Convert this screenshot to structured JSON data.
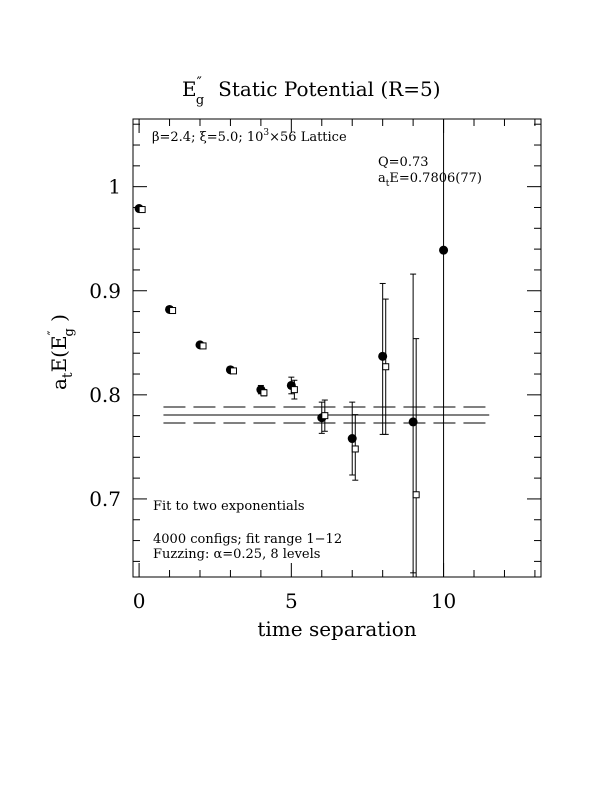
{
  "chart_data": {
    "type": "scatter",
    "title_main": "E",
    "title_sup": "″",
    "title_sub": "g",
    "title_rest": "Static Potential (R=5)",
    "xlabel": "time separation",
    "ylabel_a": "a",
    "ylabel_a_sub": "t",
    "ylabel_mid": "E(E",
    "ylabel_sup": "″",
    "ylabel_sub": "g",
    "ylabel_end": " )",
    "xlim": [
      -0.2,
      13.2
    ],
    "ylim": [
      0.625,
      1.065
    ],
    "x_ticks": [
      0,
      5,
      10
    ],
    "x_tick_labels": [
      "0",
      "5",
      "10"
    ],
    "y_ticks": [
      0.7,
      0.8,
      0.9,
      1.0
    ],
    "y_tick_labels": [
      "0.7",
      "0.8",
      "0.9",
      "1"
    ],
    "annotations": {
      "lattice_pre": "β=2.4; ξ=5.0; 10",
      "lattice_sup": "3",
      "lattice_post": "×56 Lattice",
      "q": "Q=0.73",
      "fit_a": "a",
      "fit_sub": "t",
      "fit_rest": "E=0.7806(77)",
      "method": "Fit to two exponentials",
      "configs": "4000 configs; fit range 1−12",
      "fuzzing": "Fuzzing: α=0.25, 8 levels"
    },
    "series": [
      {
        "marker": "filled-circle",
        "x": [
          0,
          1,
          2,
          3,
          4,
          5,
          6,
          7,
          8,
          9,
          10
        ],
        "y": [
          0.979,
          0.882,
          0.848,
          0.824,
          0.805,
          0.809,
          0.778,
          0.758,
          0.837,
          0.774,
          0.939
        ],
        "yerr_low": [
          0.001,
          0.0015,
          0.002,
          0.002,
          0.004,
          0.008,
          0.015,
          0.035,
          0.075,
          0.145,
          0.32
        ],
        "yerr_high": [
          0.001,
          0.0015,
          0.002,
          0.002,
          0.004,
          0.008,
          0.015,
          0.035,
          0.07,
          0.142,
          0.36
        ]
      },
      {
        "marker": "open-square",
        "x": [
          0.1,
          1.1,
          2.1,
          3.1,
          4.1,
          5.1,
          6.1,
          7.1,
          8.1,
          9.1
        ],
        "y": [
          0.978,
          0.881,
          0.847,
          0.823,
          0.802,
          0.805,
          0.78,
          0.748,
          0.827,
          0.704
        ],
        "yerr_low": [
          0.001,
          0.0015,
          0.002,
          0.002,
          0.003,
          0.009,
          0.015,
          0.03,
          0.065,
          0.08
        ],
        "yerr_high": [
          0.001,
          0.0015,
          0.002,
          0.002,
          0.003,
          0.009,
          0.015,
          0.033,
          0.065,
          0.15
        ]
      }
    ],
    "fit": {
      "value": 0.7806,
      "error": 0.0077,
      "x_range": [
        0.8,
        11.5
      ]
    }
  }
}
